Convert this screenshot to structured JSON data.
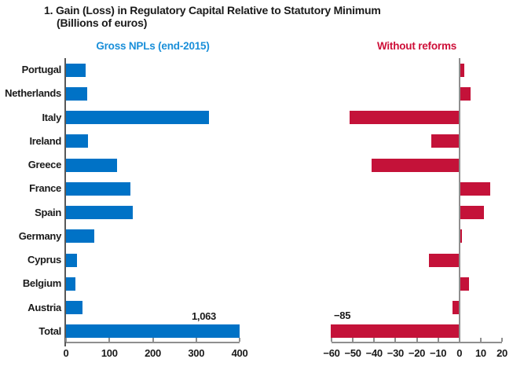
{
  "title": {
    "line1": "1. Gain (Loss) in Regulatory Capital Relative to Statutory Minimum",
    "line2": "(Billions of euros)"
  },
  "chart_data": {
    "type": "bar",
    "orientation": "horizontal",
    "title": "1. Gain (Loss) in Regulatory Capital Relative to Statutory Minimum",
    "subtitle": "(Billions of euros)",
    "grid": false,
    "legend": false,
    "categories": [
      "Portugal",
      "Netherlands",
      "Italy",
      "Ireland",
      "Greece",
      "France",
      "Spain",
      "Germany",
      "Cyprus",
      "Belgium",
      "Austria",
      "Total"
    ],
    "panels": [
      {
        "title": "Gross NPLs (end-2015)",
        "title_color": "#1A8FD9",
        "bar_color": "#0072C6",
        "xlim": [
          0,
          400
        ],
        "tick_labels": [
          "0",
          "100",
          "200",
          "300",
          "400"
        ],
        "tick_values": [
          0,
          100,
          200,
          300,
          400
        ],
        "values": [
          45,
          48,
          330,
          51,
          118,
          148,
          154,
          65,
          25,
          22,
          38,
          1063
        ],
        "truncated_note": {
          "text": "1,063",
          "category": "Total",
          "actual_value": 1063,
          "align": "right"
        }
      },
      {
        "title": "Without reforms",
        "title_color": "#CE1039",
        "bar_color": "#C41239",
        "xlim": [
          -60,
          20
        ],
        "tick_labels": [
          "−60",
          "−50",
          "−40",
          "−30",
          "−20",
          "−10",
          "0",
          "10",
          "20"
        ],
        "tick_values": [
          -60,
          -50,
          -40,
          -30,
          -20,
          -10,
          0,
          10,
          20
        ],
        "values": [
          2,
          5,
          -51,
          -13,
          -41,
          14,
          11,
          1,
          -14,
          4,
          -3,
          -85
        ],
        "truncated_note": {
          "text": "−85",
          "category": "Total",
          "actual_value": -85,
          "align": "left"
        }
      }
    ]
  }
}
